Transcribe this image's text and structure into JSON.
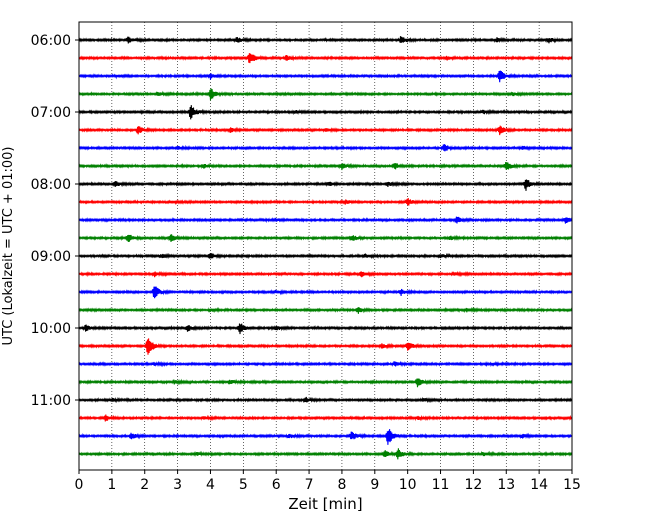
{
  "chart_data": {
    "type": "line",
    "title": "",
    "xlabel": "Zeit  [min]",
    "ylabel": "UTC (Lokalzeit = UTC + 01:00)",
    "xlim": [
      0,
      15
    ],
    "x_ticks": [
      0,
      1,
      2,
      3,
      4,
      5,
      6,
      7,
      8,
      9,
      10,
      11,
      12,
      13,
      14,
      15
    ],
    "y_tick_labels": [
      "06:00",
      "07:00",
      "08:00",
      "09:00",
      "10:00",
      "11:00"
    ],
    "grid": "vertical dotted",
    "trace_colors": [
      "#000000",
      "#ff0000",
      "#0000ff",
      "#008000"
    ],
    "traces": [
      {
        "start": "06:00",
        "events": [
          {
            "t": 1.5,
            "a": 0.35
          },
          {
            "t": 4.8,
            "a": 0.3
          },
          {
            "t": 9.8,
            "a": 0.45
          },
          {
            "t": 12.7,
            "a": 0.25
          },
          {
            "t": 14.3,
            "a": 0.3
          }
        ]
      },
      {
        "start": "06:15",
        "events": [
          {
            "t": 5.2,
            "a": 0.75
          },
          {
            "t": 6.3,
            "a": 0.3
          },
          {
            "t": 11.2,
            "a": 0.2
          }
        ]
      },
      {
        "start": "06:30",
        "events": [
          {
            "t": 4.0,
            "a": 0.35
          },
          {
            "t": 12.8,
            "a": 0.7
          },
          {
            "t": 1.2,
            "a": 0.15
          }
        ]
      },
      {
        "start": "06:45",
        "events": [
          {
            "t": 4.0,
            "a": 0.75
          },
          {
            "t": 2.4,
            "a": 0.2
          },
          {
            "t": 13.2,
            "a": 0.2
          }
        ]
      },
      {
        "start": "07:00",
        "events": [
          {
            "t": 3.4,
            "a": 0.85
          },
          {
            "t": 12.3,
            "a": 0.2
          },
          {
            "t": 6.6,
            "a": 0.15
          }
        ]
      },
      {
        "start": "07:15",
        "events": [
          {
            "t": 1.8,
            "a": 0.45
          },
          {
            "t": 4.6,
            "a": 0.3
          },
          {
            "t": 12.8,
            "a": 0.5
          },
          {
            "t": 7.5,
            "a": 0.2
          }
        ]
      },
      {
        "start": "07:30",
        "events": [
          {
            "t": 11.1,
            "a": 0.45
          },
          {
            "t": 3.0,
            "a": 0.2
          },
          {
            "t": 13.5,
            "a": 0.2
          }
        ]
      },
      {
        "start": "07:45",
        "events": [
          {
            "t": 13.0,
            "a": 0.55
          },
          {
            "t": 8.0,
            "a": 0.35
          },
          {
            "t": 9.6,
            "a": 0.35
          },
          {
            "t": 3.8,
            "a": 0.2
          }
        ]
      },
      {
        "start": "08:00",
        "events": [
          {
            "t": 13.6,
            "a": 0.75
          },
          {
            "t": 1.1,
            "a": 0.35
          },
          {
            "t": 7.6,
            "a": 0.25
          },
          {
            "t": 9.4,
            "a": 0.25
          }
        ]
      },
      {
        "start": "08:15",
        "events": [
          {
            "t": 10.0,
            "a": 0.45
          },
          {
            "t": 8.1,
            "a": 0.25
          },
          {
            "t": 2.8,
            "a": 0.15
          }
        ]
      },
      {
        "start": "08:30",
        "events": [
          {
            "t": 11.5,
            "a": 0.35
          },
          {
            "t": 14.8,
            "a": 0.35
          },
          {
            "t": 6.0,
            "a": 0.15
          }
        ]
      },
      {
        "start": "08:45",
        "events": [
          {
            "t": 1.5,
            "a": 0.5
          },
          {
            "t": 2.8,
            "a": 0.4
          },
          {
            "t": 8.3,
            "a": 0.35
          },
          {
            "t": 11.3,
            "a": 0.2
          }
        ]
      },
      {
        "start": "09:00",
        "events": [
          {
            "t": 2.5,
            "a": 0.25
          },
          {
            "t": 4.0,
            "a": 0.35
          },
          {
            "t": 8.7,
            "a": 0.2
          },
          {
            "t": 11.0,
            "a": 0.2
          }
        ]
      },
      {
        "start": "09:15",
        "events": [
          {
            "t": 2.3,
            "a": 0.3
          },
          {
            "t": 8.6,
            "a": 0.3
          },
          {
            "t": 11.4,
            "a": 0.2
          }
        ]
      },
      {
        "start": "09:30",
        "events": [
          {
            "t": 2.3,
            "a": 0.8
          },
          {
            "t": 9.8,
            "a": 0.35
          },
          {
            "t": 6.0,
            "a": 0.15
          }
        ]
      },
      {
        "start": "09:45",
        "events": [
          {
            "t": 8.5,
            "a": 0.35
          },
          {
            "t": 11.8,
            "a": 0.2
          },
          {
            "t": 4.0,
            "a": 0.15
          }
        ]
      },
      {
        "start": "10:00",
        "events": [
          {
            "t": 4.9,
            "a": 0.65
          },
          {
            "t": 3.3,
            "a": 0.4
          },
          {
            "t": 0.2,
            "a": 0.35
          },
          {
            "t": 6.0,
            "a": 0.25
          }
        ]
      },
      {
        "start": "10:15",
        "events": [
          {
            "t": 2.1,
            "a": 1.2
          },
          {
            "t": 10.0,
            "a": 0.55
          },
          {
            "t": 9.2,
            "a": 0.25
          }
        ]
      },
      {
        "start": "10:30",
        "events": [
          {
            "t": 9.6,
            "a": 0.25
          },
          {
            "t": 2.3,
            "a": 0.15
          },
          {
            "t": 12.6,
            "a": 0.15
          }
        ]
      },
      {
        "start": "10:45",
        "events": [
          {
            "t": 10.3,
            "a": 0.6
          },
          {
            "t": 4.6,
            "a": 0.25
          },
          {
            "t": 2.9,
            "a": 0.2
          }
        ]
      },
      {
        "start": "11:00",
        "events": [
          {
            "t": 1.0,
            "a": 0.2
          },
          {
            "t": 6.9,
            "a": 0.3
          },
          {
            "t": 10.5,
            "a": 0.15
          }
        ]
      },
      {
        "start": "11:15",
        "events": [
          {
            "t": 0.8,
            "a": 0.4
          },
          {
            "t": 3.8,
            "a": 0.2
          },
          {
            "t": 10.3,
            "a": 0.2
          }
        ]
      },
      {
        "start": "11:30",
        "events": [
          {
            "t": 9.4,
            "a": 1.1
          },
          {
            "t": 8.3,
            "a": 0.5
          },
          {
            "t": 1.6,
            "a": 0.35
          },
          {
            "t": 6.4,
            "a": 0.25
          },
          {
            "t": 13.5,
            "a": 0.2
          }
        ]
      },
      {
        "start": "11:45",
        "events": [
          {
            "t": 9.7,
            "a": 0.6
          },
          {
            "t": 9.3,
            "a": 0.45
          },
          {
            "t": 12.3,
            "a": 0.2
          },
          {
            "t": 3.6,
            "a": 0.15
          }
        ]
      }
    ]
  }
}
